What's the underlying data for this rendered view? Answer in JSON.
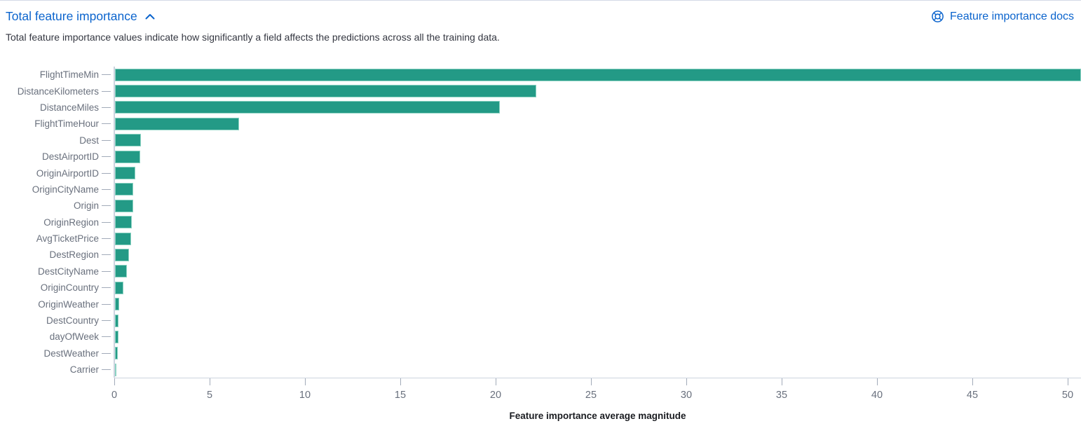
{
  "header": {
    "title": "Total feature importance",
    "collapse_icon": "chevron-up",
    "docs_link_label": "Feature importance docs",
    "docs_link_icon": "lifebuoy"
  },
  "description": "Total feature importance values indicate how significantly a field affects the predictions across all the training data.",
  "colors": {
    "link": "#0b64cd",
    "text": "#343741",
    "bar": "#239a86",
    "bar_border": "#8bd2c2",
    "axis_label": "#69707d",
    "axis_line": "#ccd4df",
    "tick_mark": "#a2abb9",
    "axis_title": "#1a1c21",
    "panel_border": "#d3dae6"
  },
  "chart_data": {
    "type": "bar",
    "orientation": "horizontal",
    "title": "",
    "xlabel": "Feature importance average magnitude",
    "ylabel": "",
    "categories": [
      "FlightTimeMin",
      "DistanceKilometers",
      "DistanceMiles",
      "FlightTimeHour",
      "Dest",
      "DestAirportID",
      "OriginAirportID",
      "OriginCityName",
      "Origin",
      "OriginRegion",
      "AvgTicketPrice",
      "DestRegion",
      "DestCityName",
      "OriginCountry",
      "OriginWeather",
      "DestCountry",
      "dayOfWeek",
      "DestWeather",
      "Carrier"
    ],
    "values": [
      50.7,
      22.1,
      20.2,
      6.5,
      1.35,
      1.32,
      1.08,
      0.97,
      0.94,
      0.9,
      0.86,
      0.72,
      0.61,
      0.44,
      0.22,
      0.18,
      0.17,
      0.15,
      0.06
    ],
    "xlim": [
      0,
      50.7
    ],
    "xticks": [
      0,
      5,
      10,
      15,
      20,
      25,
      30,
      35,
      40,
      45,
      50
    ],
    "grid": false,
    "legend": false
  }
}
